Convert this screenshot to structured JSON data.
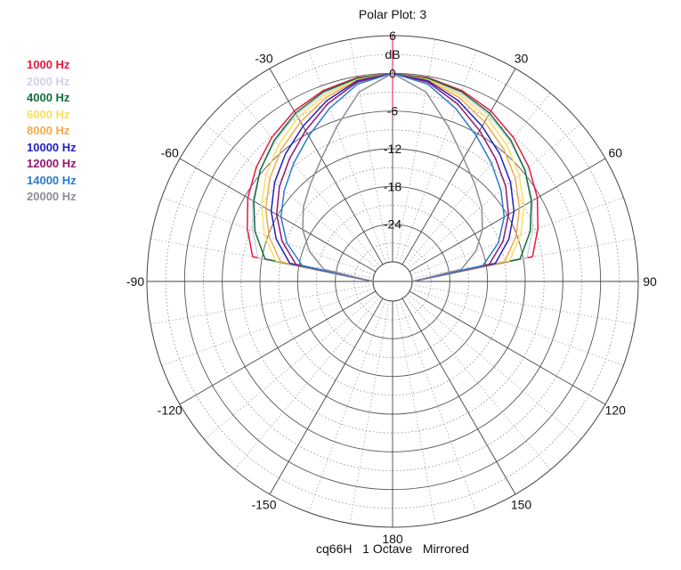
{
  "chart_data": {
    "type": "polar",
    "title": "Polar Plot: 3",
    "subtitle": "cq66H   1 Octave   Mirrored",
    "unit_label": "dB",
    "radial_ticks": [
      6,
      0,
      -6,
      -12,
      -18,
      -24
    ],
    "radial_range": [
      -30,
      6
    ],
    "angle_ticks": [
      {
        "angle": -30,
        "label": "-30"
      },
      {
        "angle": 30,
        "label": "30"
      },
      {
        "angle": -60,
        "label": "-60"
      },
      {
        "angle": 60,
        "label": "60"
      },
      {
        "angle": -90,
        "label": "-90"
      },
      {
        "angle": 90,
        "label": "90"
      },
      {
        "angle": -120,
        "label": "-120"
      },
      {
        "angle": 120,
        "label": "120"
      },
      {
        "angle": -150,
        "label": "-150"
      },
      {
        "angle": 150,
        "label": "150"
      },
      {
        "angle": 180,
        "label": "180"
      }
    ],
    "grid": true,
    "angles": [
      0,
      10,
      20,
      30,
      40,
      50,
      60,
      70,
      80,
      90
    ],
    "series": [
      {
        "name": "1000 Hz",
        "color": "#e8173c",
        "values": [
          0,
          -0.2,
          -0.8,
          -1.8,
          -3.2,
          -4.8,
          -6.5,
          -8.5,
          -10.5,
          -30
        ]
      },
      {
        "name": "2000 Hz",
        "color": "#d0d0e8",
        "values": [
          0,
          -0.4,
          -1.3,
          -2.5,
          -4.0,
          -5.6,
          -7.4,
          -9.4,
          -11.4,
          -30
        ]
      },
      {
        "name": "4000 Hz",
        "color": "#11703a",
        "values": [
          0,
          -0.3,
          -1.0,
          -2.2,
          -3.8,
          -5.6,
          -7.6,
          -9.8,
          -12.5,
          -30
        ]
      },
      {
        "name": "6000 Hz",
        "color": "#f8e060",
        "values": [
          0,
          -0.5,
          -1.6,
          -3.0,
          -4.8,
          -6.8,
          -9.0,
          -11.4,
          -14.2,
          -30
        ]
      },
      {
        "name": "8000 Hz",
        "color": "#f8a848",
        "values": [
          0,
          -0.6,
          -2.0,
          -3.8,
          -5.6,
          -7.6,
          -9.8,
          -12.2,
          -15.0,
          -30
        ]
      },
      {
        "name": "10000 Hz",
        "color": "#2020c0",
        "values": [
          0,
          -0.7,
          -2.5,
          -4.6,
          -6.6,
          -8.6,
          -10.8,
          -13.4,
          -16.5,
          -30
        ]
      },
      {
        "name": "12000 Hz",
        "color": "#901870",
        "values": [
          0,
          -0.9,
          -3.0,
          -5.4,
          -7.6,
          -9.6,
          -11.8,
          -14.4,
          -17.5,
          -30
        ]
      },
      {
        "name": "14000 Hz",
        "color": "#2a7ad0",
        "values": [
          0,
          -1.2,
          -3.8,
          -6.4,
          -8.6,
          -10.6,
          -12.6,
          -15.2,
          -18.5,
          -30
        ]
      },
      {
        "name": "20000 Hz",
        "color": "#8c8c9c",
        "values": [
          0,
          -2.5,
          -7.0,
          -10.5,
          -12.8,
          -14.6,
          -16.6,
          -19.0,
          -22.0,
          -30
        ]
      }
    ],
    "center_marker": {
      "angle": 0,
      "color": "#e8173c"
    }
  }
}
